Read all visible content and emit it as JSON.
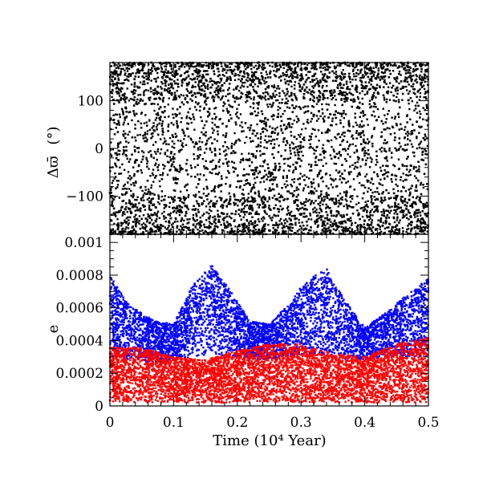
{
  "chart_data": [
    {
      "type": "scatter",
      "panel": "top",
      "ylabel_symbol": "Δϖ̄",
      "ylabel_unit": "(°)",
      "xlim": [
        0,
        0.5
      ],
      "ylim": [
        -180,
        180
      ],
      "yticks": [
        -100,
        0,
        100
      ],
      "ytick_labels": [
        "−100",
        "0",
        "100"
      ],
      "grid": false,
      "legend": "none",
      "series": [
        {
          "color": "#000000",
          "distribution": "uniform-dense",
          "description_value_range": [
            -180,
            180
          ]
        }
      ],
      "sample_points": [
        [
          0.01,
          150
        ],
        [
          0.05,
          -160
        ],
        [
          0.1,
          90
        ],
        [
          0.15,
          160
        ],
        [
          0.2,
          -120
        ],
        [
          0.25,
          30
        ],
        [
          0.3,
          -90
        ],
        [
          0.35,
          140
        ],
        [
          0.4,
          -150
        ],
        [
          0.45,
          60
        ],
        [
          0.49,
          -170
        ]
      ]
    },
    {
      "type": "scatter",
      "panel": "bottom",
      "ylabel": "e",
      "xlabel": "Time (10⁴ Year)",
      "xlim": [
        0,
        0.5
      ],
      "ylim": [
        0,
        0.00105
      ],
      "xticks": [
        0,
        0.1,
        0.2,
        0.3,
        0.4,
        0.5
      ],
      "xtick_labels": [
        "0",
        "0.1",
        "0.2",
        "0.3",
        "0.4",
        "0.5"
      ],
      "yticks": [
        0,
        0.0002,
        0.0004,
        0.0006,
        0.0008,
        0.001
      ],
      "ytick_labels": [
        "0",
        "0.0002",
        "0.0004",
        "0.0006",
        "0.0008",
        "0.001"
      ],
      "grid": false,
      "legend": "none",
      "series": [
        {
          "color": "#0000ff",
          "envelope_x": [
            0.0,
            0.03,
            0.07,
            0.1,
            0.13,
            0.16,
            0.19,
            0.22,
            0.25,
            0.28,
            0.31,
            0.34,
            0.37,
            0.4,
            0.43,
            0.46,
            0.5
          ],
          "envelope_upper": [
            0.0008,
            0.00062,
            0.00052,
            0.0005,
            0.00074,
            0.00086,
            0.0007,
            0.00052,
            0.0005,
            0.00062,
            0.00078,
            0.00084,
            0.00064,
            0.00048,
            0.00056,
            0.00066,
            0.00078
          ],
          "envelope_lower": [
            0.0003,
            0.00028,
            0.00026,
            0.00028,
            0.0003,
            0.00032,
            0.0003,
            0.00028,
            0.00028,
            0.0003,
            0.00032,
            0.0003,
            0.00028,
            0.00028,
            0.0003,
            0.0003,
            0.0003
          ]
        },
        {
          "color": "#ff0000",
          "envelope_x": [
            0.0,
            0.05,
            0.1,
            0.15,
            0.2,
            0.25,
            0.3,
            0.35,
            0.4,
            0.45,
            0.5
          ],
          "envelope_upper": [
            0.00036,
            0.00036,
            0.0003,
            0.00028,
            0.00034,
            0.00038,
            0.00038,
            0.00032,
            0.0003,
            0.00038,
            0.00042
          ],
          "envelope_lower": [
            2e-05,
            2e-05,
            2e-05,
            2e-05,
            2e-05,
            2e-05,
            2e-05,
            2e-05,
            2e-05,
            2e-05,
            2e-05
          ]
        }
      ]
    }
  ]
}
